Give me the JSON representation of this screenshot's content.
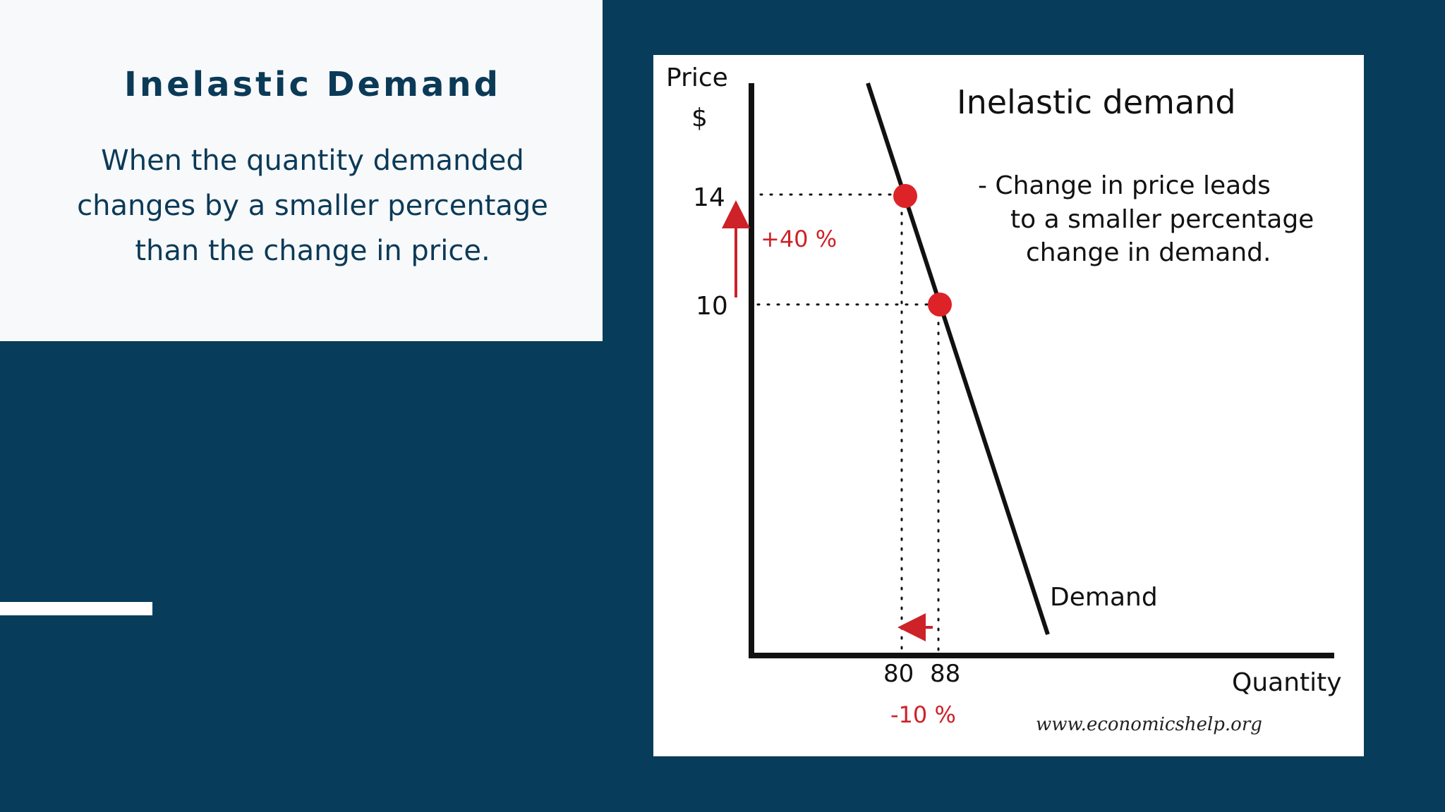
{
  "slide": {
    "title": "Inelastic Demand",
    "body_lines": [
      "When the quantity demanded",
      "changes by a smaller percentage",
      "than the change in price."
    ]
  },
  "colors": {
    "background": "#073d5a",
    "card": "#f8f9fb",
    "title_text": "#0b3a57",
    "accent_bar": "#ffffff",
    "curve": "#111111",
    "highlight": "#cc2228"
  },
  "figure": {
    "title": "Inelastic demand",
    "y_axis_label": "Price",
    "y_axis_unit": "$",
    "x_axis_label": "Quantity",
    "curve_label": "Demand",
    "note_lines": [
      "- Change in price leads",
      "to a smaller percentage",
      "change in demand."
    ],
    "price_change_label": "+40 %",
    "quantity_change_label": "-10 %",
    "source": "www.economicshelp.org",
    "y_ticks": [
      "14",
      "10"
    ],
    "x_ticks": [
      "80",
      "88"
    ],
    "points": [
      {
        "quantity": 80,
        "price": 14
      },
      {
        "quantity": 88,
        "price": 10
      }
    ]
  }
}
